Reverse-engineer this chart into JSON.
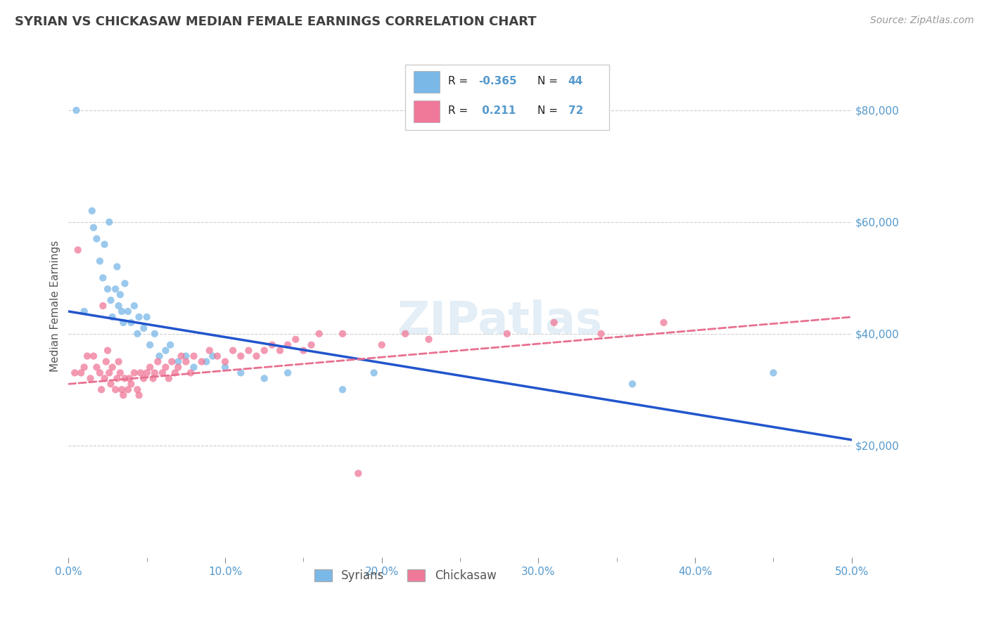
{
  "title": "SYRIAN VS CHICKASAW MEDIAN FEMALE EARNINGS CORRELATION CHART",
  "source": "Source: ZipAtlas.com",
  "ylabel": "Median Female Earnings",
  "xlim": [
    0.0,
    0.5
  ],
  "ylim": [
    0,
    90000
  ],
  "yticks": [
    20000,
    40000,
    60000,
    80000
  ],
  "ytick_labels": [
    "$20,000",
    "$40,000",
    "$60,000",
    "$80,000"
  ],
  "xtick_labels": [
    "0.0%",
    "",
    "",
    "",
    "",
    "",
    "",
    "",
    "",
    "",
    "10.0%",
    "",
    "",
    "",
    "",
    "",
    "",
    "",
    "",
    "",
    "20.0%",
    "",
    "",
    "",
    "",
    "",
    "",
    "",
    "",
    "",
    "30.0%",
    "",
    "",
    "",
    "",
    "",
    "",
    "",
    "",
    "",
    "40.0%",
    "",
    "",
    "",
    "",
    "",
    "",
    "",
    "",
    "",
    "50.0%"
  ],
  "xticks": [
    0.0,
    0.01,
    0.02,
    0.03,
    0.04,
    0.05,
    0.06,
    0.07,
    0.08,
    0.09,
    0.1,
    0.11,
    0.12,
    0.13,
    0.14,
    0.15,
    0.16,
    0.17,
    0.18,
    0.19,
    0.2,
    0.21,
    0.22,
    0.23,
    0.24,
    0.25,
    0.26,
    0.27,
    0.28,
    0.29,
    0.3,
    0.31,
    0.32,
    0.33,
    0.34,
    0.35,
    0.36,
    0.37,
    0.38,
    0.39,
    0.4,
    0.41,
    0.42,
    0.43,
    0.44,
    0.45,
    0.46,
    0.47,
    0.48,
    0.49,
    0.5
  ],
  "legend_label1": "Syrians",
  "legend_label2": "Chickasaw",
  "syrians_color": "#7ab8e8",
  "chickasaw_color": "#f07898",
  "syrians_line_color": "#2255cc",
  "chickasaw_line_color": "#e87090",
  "background_color": "#ffffff",
  "grid_color": "#c8c8c8",
  "title_color": "#404040",
  "axis_label_color": "#555555",
  "tick_color": "#5599cc",
  "watermark": "ZIPatlas",
  "syrians_scatter_x": [
    0.005,
    0.01,
    0.015,
    0.016,
    0.018,
    0.02,
    0.022,
    0.023,
    0.025,
    0.026,
    0.027,
    0.028,
    0.03,
    0.031,
    0.032,
    0.033,
    0.034,
    0.035,
    0.036,
    0.038,
    0.04,
    0.042,
    0.044,
    0.045,
    0.048,
    0.05,
    0.052,
    0.055,
    0.058,
    0.062,
    0.065,
    0.07,
    0.075,
    0.08,
    0.088,
    0.092,
    0.1,
    0.11,
    0.125,
    0.14,
    0.175,
    0.195,
    0.36,
    0.45
  ],
  "syrians_scatter_y": [
    80000,
    44000,
    62000,
    59000,
    57000,
    53000,
    50000,
    56000,
    48000,
    60000,
    46000,
    43000,
    48000,
    52000,
    45000,
    47000,
    44000,
    42000,
    49000,
    44000,
    42000,
    45000,
    40000,
    43000,
    41000,
    43000,
    38000,
    40000,
    36000,
    37000,
    38000,
    35000,
    36000,
    34000,
    35000,
    36000,
    34000,
    33000,
    32000,
    33000,
    30000,
    33000,
    31000,
    33000
  ],
  "chickasaw_scatter_x": [
    0.004,
    0.006,
    0.008,
    0.01,
    0.012,
    0.014,
    0.016,
    0.018,
    0.02,
    0.021,
    0.022,
    0.023,
    0.024,
    0.025,
    0.026,
    0.027,
    0.028,
    0.03,
    0.031,
    0.032,
    0.033,
    0.034,
    0.035,
    0.036,
    0.038,
    0.039,
    0.04,
    0.042,
    0.044,
    0.045,
    0.046,
    0.048,
    0.05,
    0.052,
    0.054,
    0.055,
    0.057,
    0.06,
    0.062,
    0.064,
    0.066,
    0.068,
    0.07,
    0.072,
    0.075,
    0.078,
    0.08,
    0.085,
    0.09,
    0.095,
    0.1,
    0.105,
    0.11,
    0.115,
    0.12,
    0.125,
    0.13,
    0.135,
    0.14,
    0.145,
    0.15,
    0.155,
    0.16,
    0.175,
    0.185,
    0.2,
    0.215,
    0.23,
    0.28,
    0.31,
    0.34,
    0.38
  ],
  "chickasaw_scatter_y": [
    33000,
    55000,
    33000,
    34000,
    36000,
    32000,
    36000,
    34000,
    33000,
    30000,
    45000,
    32000,
    35000,
    37000,
    33000,
    31000,
    34000,
    30000,
    32000,
    35000,
    33000,
    30000,
    29000,
    32000,
    30000,
    32000,
    31000,
    33000,
    30000,
    29000,
    33000,
    32000,
    33000,
    34000,
    32000,
    33000,
    35000,
    33000,
    34000,
    32000,
    35000,
    33000,
    34000,
    36000,
    35000,
    33000,
    36000,
    35000,
    37000,
    36000,
    35000,
    37000,
    36000,
    37000,
    36000,
    37000,
    38000,
    37000,
    38000,
    39000,
    37000,
    38000,
    40000,
    40000,
    15000,
    38000,
    40000,
    39000,
    40000,
    42000,
    40000,
    42000
  ],
  "syrians_line_x0": 0.0,
  "syrians_line_y0": 44000,
  "syrians_line_x1": 0.5,
  "syrians_line_y1": 21000,
  "chickasaw_line_x0": 0.0,
  "chickasaw_line_y0": 31000,
  "chickasaw_line_x1": 0.5,
  "chickasaw_line_y1": 43000
}
